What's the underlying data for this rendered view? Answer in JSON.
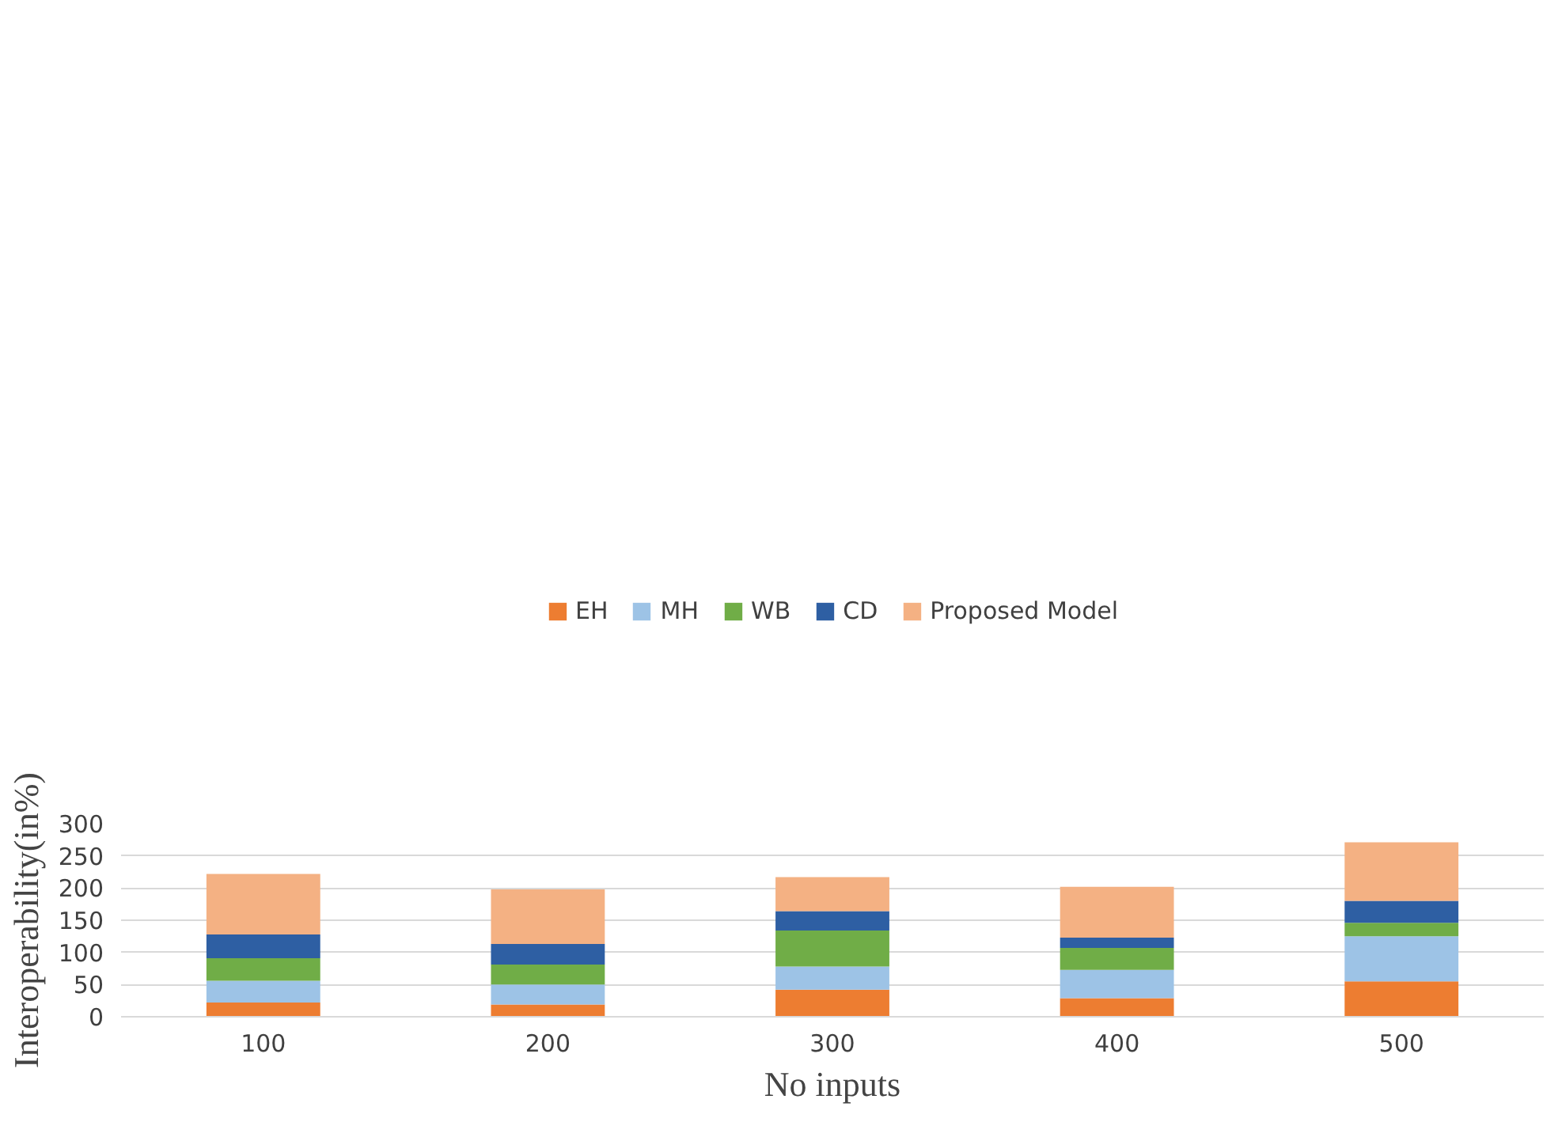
{
  "chart_data": {
    "type": "bar",
    "stacked": true,
    "xlabel": "No inputs",
    "ylabel": "Interoperability(in%)",
    "categories": [
      "100",
      "200",
      "300",
      "400",
      "500"
    ],
    "series": [
      {
        "name": "EH",
        "color": "#ed7d31",
        "values": [
          22,
          19,
          42,
          29,
          55
        ]
      },
      {
        "name": "MH",
        "color": "#9dc3e6",
        "values": [
          34,
          31,
          36,
          44,
          70
        ]
      },
      {
        "name": "WB",
        "color": "#70ad47",
        "values": [
          35,
          31,
          56,
          34,
          21
        ]
      },
      {
        "name": "CD",
        "color": "#2e5fa3",
        "values": [
          37,
          32,
          30,
          16,
          34
        ]
      },
      {
        "name": "Proposed Model",
        "color": "#f4b183",
        "values": [
          94,
          85,
          53,
          79,
          91
        ]
      }
    ],
    "ylim": [
      0,
      300
    ],
    "yticks": [
      0,
      50,
      100,
      150,
      200,
      250,
      300
    ],
    "grid": "y",
    "legend": "top"
  }
}
